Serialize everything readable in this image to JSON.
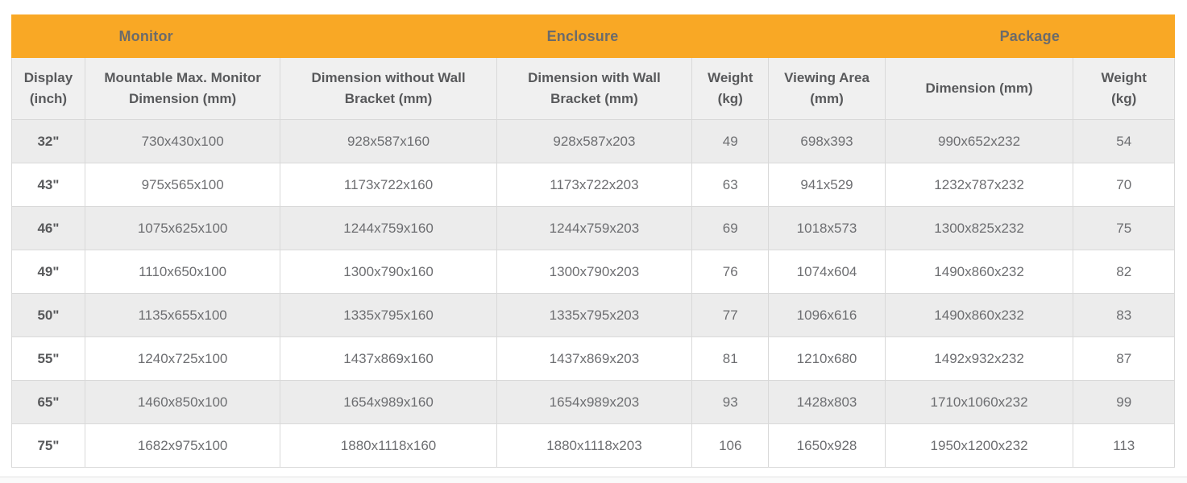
{
  "styles": {
    "accent_color": "#f9a825",
    "stripe_color": "#ececec",
    "border_color": "#d9d9d9",
    "header_text_color": "#58595b",
    "body_text_color": "#6d6e71"
  },
  "chart_data": {
    "type": "table",
    "title": "",
    "group_headers": [
      {
        "label": "Monitor",
        "colspan": 2
      },
      {
        "label": "Enclosure",
        "colspan": 4
      },
      {
        "label": "Package",
        "colspan": 2
      }
    ],
    "columns": [
      "Display\n(inch)",
      "Mountable Max. Monitor\nDimension (mm)",
      "Dimension without Wall\nBracket (mm)",
      "Dimension with Wall\nBracket (mm)",
      "Weight\n(kg)",
      "Viewing Area\n(mm)",
      "Dimension (mm)",
      "Weight\n(kg)"
    ],
    "rows": [
      [
        "32\"",
        "730x430x100",
        "928x587x160",
        "928x587x203",
        "49",
        "698x393",
        "990x652x232",
        "54"
      ],
      [
        "43\"",
        "975x565x100",
        "1173x722x160",
        "1173x722x203",
        "63",
        "941x529",
        "1232x787x232",
        "70"
      ],
      [
        "46\"",
        "1075x625x100",
        "1244x759x160",
        "1244x759x203",
        "69",
        "1018x573",
        "1300x825x232",
        "75"
      ],
      [
        "49\"",
        "1110x650x100",
        "1300x790x160",
        "1300x790x203",
        "76",
        "1074x604",
        "1490x860x232",
        "82"
      ],
      [
        "50\"",
        "1135x655x100",
        "1335x795x160",
        "1335x795x203",
        "77",
        "1096x616",
        "1490x860x232",
        "83"
      ],
      [
        "55\"",
        "1240x725x100",
        "1437x869x160",
        "1437x869x203",
        "81",
        "1210x680",
        "1492x932x232",
        "87"
      ],
      [
        "65\"",
        "1460x850x100",
        "1654x989x160",
        "1654x989x203",
        "93",
        "1428x803",
        "1710x1060x232",
        "99"
      ],
      [
        "75\"",
        "1682x975x100",
        "1880x1118x160",
        "1880x1118x203",
        "106",
        "1650x928",
        "1950x1200x232",
        "113"
      ]
    ]
  }
}
